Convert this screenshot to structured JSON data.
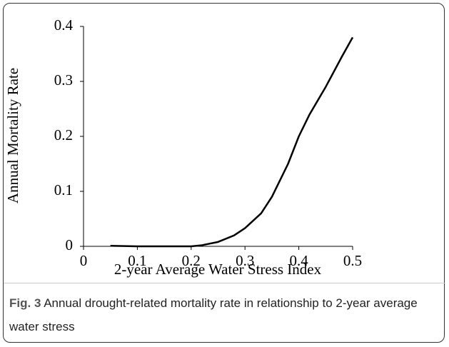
{
  "chart_data": {
    "type": "line",
    "xlabel": "2-year Average Water Stress Index",
    "ylabel": "Annual Mortality Rate",
    "x": [
      0.05,
      0.1,
      0.15,
      0.2,
      0.22,
      0.25,
      0.28,
      0.3,
      0.33,
      0.35,
      0.38,
      0.4,
      0.42,
      0.45,
      0.48,
      0.5
    ],
    "values": [
      0.001,
      0,
      0,
      0,
      0.002,
      0.008,
      0.02,
      0.033,
      0.06,
      0.09,
      0.15,
      0.2,
      0.24,
      0.29,
      0.345,
      0.38
    ],
    "color": "#000000",
    "xlim": [
      0,
      0.5
    ],
    "xticks": [
      0,
      0.1,
      0.2,
      0.3,
      0.4,
      0.5
    ],
    "ylim": [
      0,
      0.4
    ],
    "yticks": [
      0,
      0.1,
      0.2,
      0.3,
      0.4
    ],
    "grid": false
  },
  "caption": {
    "label": "Fig. 3",
    "text": "Annual drought-related mortality rate in relationship to 2-year average water stress"
  }
}
